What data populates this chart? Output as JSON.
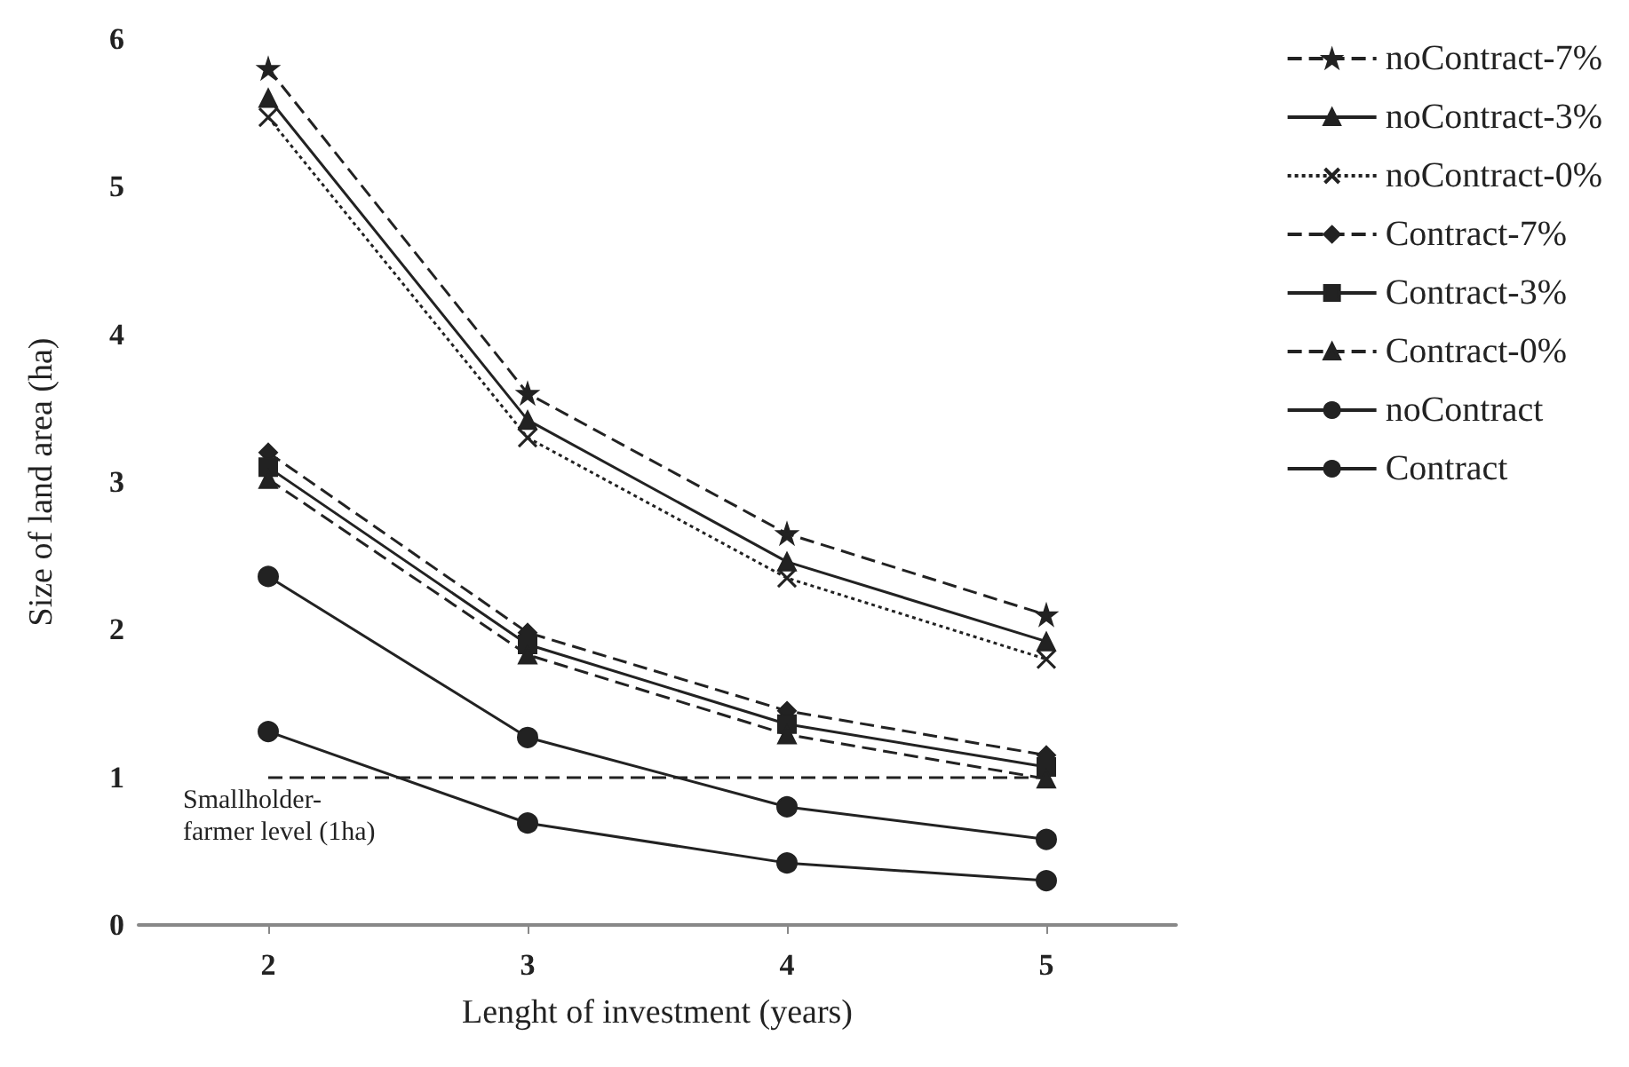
{
  "chart_data": {
    "type": "line",
    "xlabel": "Lenght of investment (years)",
    "ylabel": "Size of land area (ha)",
    "categories": [
      "2",
      "3",
      "4",
      "5"
    ],
    "ylim": [
      0,
      6
    ],
    "yticks": [
      0,
      1,
      2,
      3,
      4,
      5,
      6
    ],
    "grid": false,
    "legend": "right",
    "series": [
      {
        "name": "noContract-7%",
        "color": "#222222",
        "marker": "star",
        "line_style": "dashed",
        "values": [
          5.8,
          3.6,
          2.65,
          2.1
        ]
      },
      {
        "name": "noContract-3%",
        "color": "#222222",
        "marker": "triangle",
        "line_style": "solid",
        "values": [
          5.6,
          3.42,
          2.46,
          1.92
        ]
      },
      {
        "name": "noContract-0%",
        "color": "#222222",
        "marker": "cross",
        "line_style": "dotted",
        "values": [
          5.47,
          3.3,
          2.35,
          1.8
        ]
      },
      {
        "name": "Contract-7%",
        "color": "#222222",
        "marker": "diamond",
        "line_style": "dashed",
        "values": [
          3.2,
          1.98,
          1.45,
          1.15
        ]
      },
      {
        "name": "Contract-3%",
        "color": "#222222",
        "marker": "square",
        "line_style": "solid",
        "values": [
          3.1,
          1.9,
          1.36,
          1.07
        ]
      },
      {
        "name": "Contract-0%",
        "color": "#222222",
        "marker": "triangle",
        "line_style": "dashed",
        "values": [
          3.02,
          1.83,
          1.29,
          0.99
        ]
      },
      {
        "name": "noContract",
        "color": "#222222",
        "marker": "circle",
        "line_style": "solid",
        "values": [
          2.36,
          1.27,
          0.8,
          0.58
        ]
      },
      {
        "name": "Contract",
        "color": "#222222",
        "marker": "circle",
        "line_style": "solid",
        "values": [
          1.31,
          0.69,
          0.42,
          0.3
        ]
      }
    ],
    "ref_lines": [
      {
        "axis": "y",
        "value": 1,
        "label": "Smallholder-farmer level (1ha)",
        "color": "#222222",
        "line_style": "dashed"
      }
    ]
  }
}
